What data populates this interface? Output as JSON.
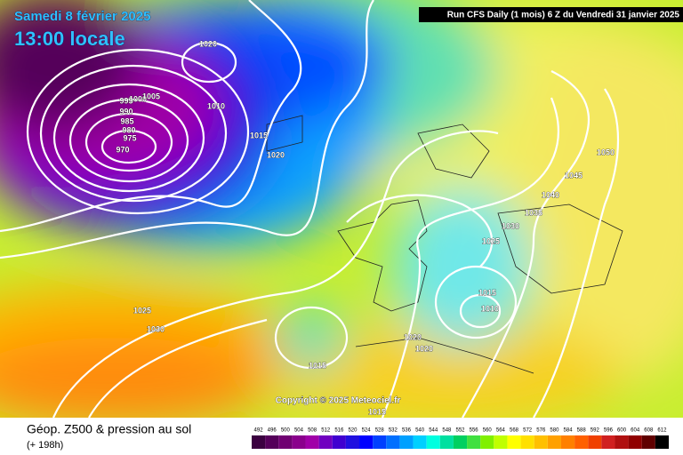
{
  "header": {
    "date": "Samedi 8 février 2025",
    "time": "13:00 locale",
    "run": "Run CFS Daily (1 mois) 6 Z du Vendredi 31 janvier 2025"
  },
  "map": {
    "isobar_labels": [
      "1020",
      "1010",
      "1015",
      "1020",
      "995",
      "1000",
      "1005",
      "990",
      "985",
      "980",
      "975",
      "970",
      "1025",
      "1030",
      "1015",
      "1020",
      "1020",
      "1015",
      "1010",
      "1015",
      "1025",
      "1030",
      "1035",
      "1040",
      "1045",
      "1050"
    ],
    "copyright": "Copyright © 2025 Meteociel.fr"
  },
  "footer": {
    "title": "Géop. Z500 & pression au sol",
    "lead": "(+ 198h)"
  },
  "legend": {
    "scale": [
      492,
      496,
      500,
      504,
      508,
      512,
      516,
      520,
      524,
      528,
      532,
      536,
      540,
      544,
      548,
      552,
      556,
      560,
      564,
      568,
      572,
      576,
      580,
      584,
      588,
      592,
      596,
      600,
      604,
      608,
      612
    ],
    "colors": [
      "#3b0040",
      "#55005a",
      "#700072",
      "#8a008c",
      "#a000a8",
      "#7000c0",
      "#4000d0",
      "#2010e0",
      "#0000ff",
      "#0040ff",
      "#0070ff",
      "#00a0ff",
      "#00d0ff",
      "#00ffe0",
      "#00e0a0",
      "#00d060",
      "#40e040",
      "#80f000",
      "#c0ff00",
      "#ffff00",
      "#ffe000",
      "#ffc000",
      "#ffa000",
      "#ff8000",
      "#ff6000",
      "#f04000",
      "#d02020",
      "#b01010",
      "#900000",
      "#600000",
      "#000000"
    ]
  }
}
